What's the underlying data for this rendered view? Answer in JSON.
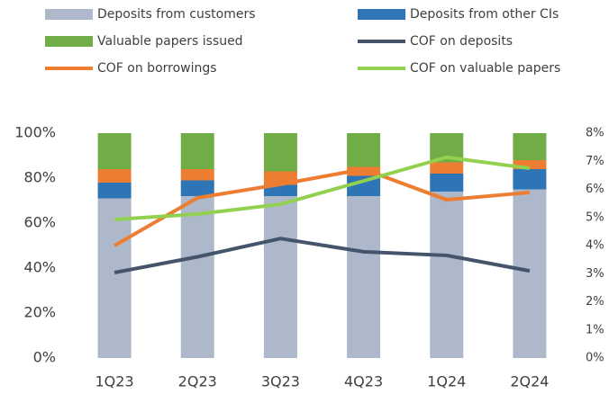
{
  "chart_data": {
    "type": "bar",
    "stacked": true,
    "categories": [
      "1Q23",
      "2Q23",
      "3Q23",
      "4Q23",
      "1Q24",
      "2Q24"
    ],
    "series": [
      {
        "name": "Deposits from customers",
        "color": "#adb9ca",
        "values": [
          71,
          72,
          72,
          72,
          74,
          75
        ]
      },
      {
        "name": "Deposits from other CIs",
        "color": "#2e75b6",
        "values": [
          7,
          7,
          5,
          9,
          8,
          9
        ]
      },
      {
        "color": "#ed7d31",
        "values": [
          6,
          5,
          6,
          4,
          5,
          4
        ]
      },
      {
        "name": "Valuable papers issued",
        "color": "#70ad47",
        "values": [
          16,
          16,
          17,
          15,
          13,
          12
        ]
      },
      {
        "name": "COF on deposits",
        "color": "#44546a",
        "type": "line",
        "axis": "y2",
        "values": [
          3.04,
          3.6,
          4.25,
          3.78,
          3.65,
          3.1
        ]
      },
      {
        "name": "COF on borrowings",
        "color": "#ed7d31",
        "type": "line",
        "axis": "y2",
        "values": [
          4.0,
          5.7,
          6.18,
          6.72,
          5.63,
          5.89
        ]
      },
      {
        "name": "COF on valuable papers",
        "color": "#92d050",
        "type": "line",
        "axis": "y2",
        "values": [
          4.93,
          5.12,
          5.47,
          6.3,
          7.14,
          6.75
        ]
      }
    ],
    "ylim": [
      0,
      100
    ],
    "yticks": [
      {
        "value": 0,
        "label": "0%"
      },
      {
        "value": 20,
        "label": "20%"
      },
      {
        "value": 40,
        "label": "40%"
      },
      {
        "value": 60,
        "label": "60%"
      },
      {
        "value": 80,
        "label": "80%"
      },
      {
        "value": 100,
        "label": "100%"
      }
    ],
    "y2lim": [
      0,
      8
    ],
    "y2ticks": [
      {
        "value": 0,
        "label": "0%"
      },
      {
        "value": 1,
        "label": "1%"
      },
      {
        "value": 2,
        "label": "2%"
      },
      {
        "value": 3,
        "label": "3%"
      },
      {
        "value": 4,
        "label": "4%"
      },
      {
        "value": 5,
        "label": "5%"
      },
      {
        "value": 6,
        "label": "6%"
      },
      {
        "value": 7,
        "label": "7%"
      },
      {
        "value": 8,
        "label": "8%"
      }
    ],
    "legend": "top"
  }
}
